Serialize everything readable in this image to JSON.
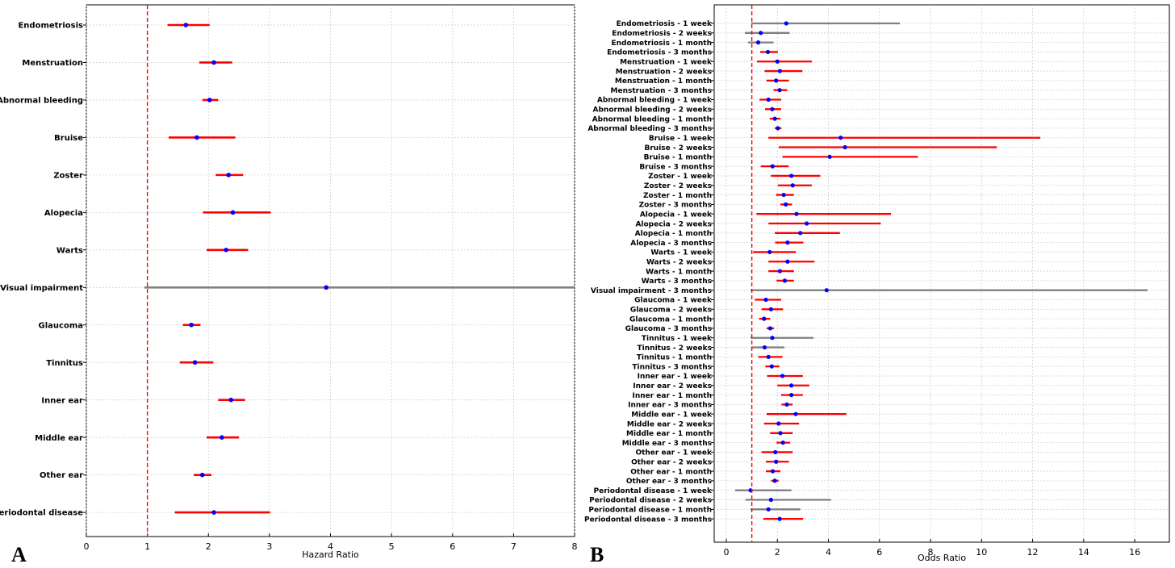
{
  "chart_data": [
    {
      "panel_label": "A",
      "type": "forest",
      "xlabel": "Hazard Ratio",
      "xlim": [
        0,
        8
      ],
      "xticks": [
        "0",
        "1",
        "2",
        "3",
        "4",
        "5",
        "6",
        "7",
        "8"
      ],
      "reference_line": 1,
      "grid": "x and y dotted",
      "significant_color": "#ff0000",
      "nonsignificant_color": "#808080",
      "point_color": "#0000ff",
      "reference_color": "#ff0000",
      "rows": [
        {
          "label": "Endometriosis",
          "est": 1.63,
          "low": 1.33,
          "high": 2.02
        },
        {
          "label": "Menstruation",
          "est": 2.09,
          "low": 1.85,
          "high": 2.39
        },
        {
          "label": "Abnormal bleeding",
          "est": 2.02,
          "low": 1.9,
          "high": 2.16
        },
        {
          "label": "Bruise",
          "est": 1.81,
          "low": 1.35,
          "high": 2.44
        },
        {
          "label": "Zoster",
          "est": 2.33,
          "low": 2.12,
          "high": 2.57
        },
        {
          "label": "Alopecia",
          "est": 2.4,
          "low": 1.91,
          "high": 3.02
        },
        {
          "label": "Warts",
          "est": 2.29,
          "low": 1.97,
          "high": 2.65
        },
        {
          "label": "Visual impairment",
          "est": 3.93,
          "low": 0.95,
          "high": 8.0
        },
        {
          "label": "Glaucoma",
          "est": 1.72,
          "low": 1.58,
          "high": 1.87
        },
        {
          "label": "Tinnitus",
          "est": 1.78,
          "low": 1.53,
          "high": 2.08
        },
        {
          "label": "Inner ear",
          "est": 2.37,
          "low": 2.16,
          "high": 2.6
        },
        {
          "label": "Middle ear",
          "est": 2.22,
          "low": 1.97,
          "high": 2.5
        },
        {
          "label": "Other ear",
          "est": 1.9,
          "low": 1.76,
          "high": 2.05
        },
        {
          "label": "Periodontal disease",
          "est": 2.09,
          "low": 1.45,
          "high": 3.01
        }
      ]
    },
    {
      "panel_label": "B",
      "type": "forest",
      "xlabel": "Odds Ratio",
      "xlim": [
        -0.5,
        17.2
      ],
      "xticks": [
        "0",
        "2",
        "4",
        "6",
        "8",
        "10",
        "12",
        "14",
        "16"
      ],
      "reference_line": 1,
      "grid": "x and y dotted",
      "significant_color": "#ff0000",
      "nonsignificant_color": "#808080",
      "point_color": "#0000ff",
      "reference_color": "#ff0000",
      "rows": [
        {
          "label": "Endometriosis - 1 week",
          "est": 2.35,
          "low": 0.98,
          "high": 6.8,
          "sig": false
        },
        {
          "label": "Endometriosis - 2 weeks",
          "est": 1.35,
          "low": 0.73,
          "high": 2.48,
          "sig": false
        },
        {
          "label": "Endometriosis - 1 month",
          "est": 1.25,
          "low": 0.85,
          "high": 1.85,
          "sig": false
        },
        {
          "label": "Endometriosis - 3 months",
          "est": 1.63,
          "low": 1.33,
          "high": 2.02,
          "sig": true
        },
        {
          "label": "Menstruation - 1 week",
          "est": 2.0,
          "low": 1.2,
          "high": 3.35,
          "sig": true
        },
        {
          "label": "Menstruation - 2 weeks",
          "est": 2.1,
          "low": 1.5,
          "high": 2.98,
          "sig": true
        },
        {
          "label": "Menstruation - 1 month",
          "est": 1.95,
          "low": 1.57,
          "high": 2.45,
          "sig": true
        },
        {
          "label": "Menstruation - 3 months",
          "est": 2.09,
          "low": 1.85,
          "high": 2.39,
          "sig": true
        },
        {
          "label": "Abnormal bleeding - 1 week",
          "est": 1.65,
          "low": 1.3,
          "high": 2.15,
          "sig": true
        },
        {
          "label": "Abnormal bleeding - 2 weeks",
          "est": 1.8,
          "low": 1.52,
          "high": 2.15,
          "sig": true
        },
        {
          "label": "Abnormal bleeding - 1 month",
          "est": 1.9,
          "low": 1.7,
          "high": 2.12,
          "sig": true
        },
        {
          "label": "Abnormal bleeding - 3 months",
          "est": 2.02,
          "low": 1.9,
          "high": 2.16,
          "sig": true
        },
        {
          "label": "Bruise - 1 week",
          "est": 4.48,
          "low": 1.65,
          "high": 12.3,
          "sig": true
        },
        {
          "label": "Bruise - 2 weeks",
          "est": 4.65,
          "low": 2.05,
          "high": 10.6,
          "sig": true
        },
        {
          "label": "Bruise - 1 month",
          "est": 4.05,
          "low": 2.2,
          "high": 7.5,
          "sig": true
        },
        {
          "label": "Bruise - 3 months",
          "est": 1.81,
          "low": 1.35,
          "high": 2.44,
          "sig": true
        },
        {
          "label": "Zoster - 1 week",
          "est": 2.55,
          "low": 1.75,
          "high": 3.68,
          "sig": true
        },
        {
          "label": "Zoster - 2 weeks",
          "est": 2.6,
          "low": 2.02,
          "high": 3.35,
          "sig": true
        },
        {
          "label": "Zoster - 1 month",
          "est": 2.25,
          "low": 1.95,
          "high": 2.65,
          "sig": true
        },
        {
          "label": "Zoster - 3 months",
          "est": 2.33,
          "low": 2.12,
          "high": 2.57,
          "sig": true
        },
        {
          "label": "Alopecia - 1 week",
          "est": 2.75,
          "low": 1.18,
          "high": 6.45,
          "sig": true
        },
        {
          "label": "Alopecia - 2 weeks",
          "est": 3.15,
          "low": 1.65,
          "high": 6.05,
          "sig": true
        },
        {
          "label": "Alopecia - 1 month",
          "est": 2.9,
          "low": 1.9,
          "high": 4.45,
          "sig": true
        },
        {
          "label": "Alopecia - 3 months",
          "est": 2.4,
          "low": 1.91,
          "high": 3.02,
          "sig": true
        },
        {
          "label": "Warts - 1 week",
          "est": 1.7,
          "low": 1.05,
          "high": 2.72,
          "sig": true
        },
        {
          "label": "Warts - 2 weeks",
          "est": 2.4,
          "low": 1.65,
          "high": 3.45,
          "sig": true
        },
        {
          "label": "Warts - 1 month",
          "est": 2.1,
          "low": 1.65,
          "high": 2.65,
          "sig": true
        },
        {
          "label": "Warts - 3 months",
          "est": 2.29,
          "low": 1.97,
          "high": 2.65,
          "sig": true
        },
        {
          "label": "Visual impairment - 3 months",
          "est": 3.93,
          "low": 0.95,
          "high": 16.5,
          "sig": false
        },
        {
          "label": "Glaucoma - 1 week",
          "est": 1.55,
          "low": 1.12,
          "high": 2.15,
          "sig": true
        },
        {
          "label": "Glaucoma - 2 weeks",
          "est": 1.75,
          "low": 1.38,
          "high": 2.22,
          "sig": true
        },
        {
          "label": "Glaucoma - 1 month",
          "est": 1.48,
          "low": 1.28,
          "high": 1.72,
          "sig": true
        },
        {
          "label": "Glaucoma - 3 months",
          "est": 1.72,
          "low": 1.58,
          "high": 1.87,
          "sig": true
        },
        {
          "label": "Tinnitus - 1 week",
          "est": 1.8,
          "low": 0.95,
          "high": 3.42,
          "sig": false
        },
        {
          "label": "Tinnitus - 2 weeks",
          "est": 1.5,
          "low": 0.98,
          "high": 2.28,
          "sig": false
        },
        {
          "label": "Tinnitus - 1 month",
          "est": 1.65,
          "low": 1.25,
          "high": 2.2,
          "sig": true
        },
        {
          "label": "Tinnitus - 3 months",
          "est": 1.78,
          "low": 1.53,
          "high": 2.08,
          "sig": true
        },
        {
          "label": "Inner ear - 1 week",
          "est": 2.2,
          "low": 1.6,
          "high": 3.0,
          "sig": true
        },
        {
          "label": "Inner ear - 2 weeks",
          "est": 2.55,
          "low": 2.0,
          "high": 3.25,
          "sig": true
        },
        {
          "label": "Inner ear - 1 month",
          "est": 2.55,
          "low": 2.15,
          "high": 3.0,
          "sig": true
        },
        {
          "label": "Inner ear - 3 months",
          "est": 2.37,
          "low": 2.16,
          "high": 2.6,
          "sig": true
        },
        {
          "label": "Middle ear - 1 week",
          "est": 2.72,
          "low": 1.58,
          "high": 4.7,
          "sig": true
        },
        {
          "label": "Middle ear - 2 weeks",
          "est": 2.05,
          "low": 1.48,
          "high": 2.85,
          "sig": true
        },
        {
          "label": "Middle ear - 1 month",
          "est": 2.12,
          "low": 1.72,
          "high": 2.6,
          "sig": true
        },
        {
          "label": "Middle ear - 3 months",
          "est": 2.22,
          "low": 1.97,
          "high": 2.5,
          "sig": true
        },
        {
          "label": "Other ear - 1 week",
          "est": 1.92,
          "low": 1.38,
          "high": 2.6,
          "sig": true
        },
        {
          "label": "Other ear - 2 weeks",
          "est": 1.95,
          "low": 1.55,
          "high": 2.45,
          "sig": true
        },
        {
          "label": "Other ear - 1 month",
          "est": 1.82,
          "low": 1.55,
          "high": 2.12,
          "sig": true
        },
        {
          "label": "Other ear - 3 months",
          "est": 1.9,
          "low": 1.76,
          "high": 2.05,
          "sig": true
        },
        {
          "label": "Periodontal disease - 1 week",
          "est": 0.95,
          "low": 0.35,
          "high": 2.55,
          "sig": false
        },
        {
          "label": "Periodontal disease - 2 weeks",
          "est": 1.75,
          "low": 0.75,
          "high": 4.1,
          "sig": false
        },
        {
          "label": "Periodontal disease - 1 month",
          "est": 1.65,
          "low": 0.95,
          "high": 2.9,
          "sig": false
        },
        {
          "label": "Periodontal disease - 3 months",
          "est": 2.09,
          "low": 1.45,
          "high": 3.01,
          "sig": true
        }
      ]
    }
  ]
}
